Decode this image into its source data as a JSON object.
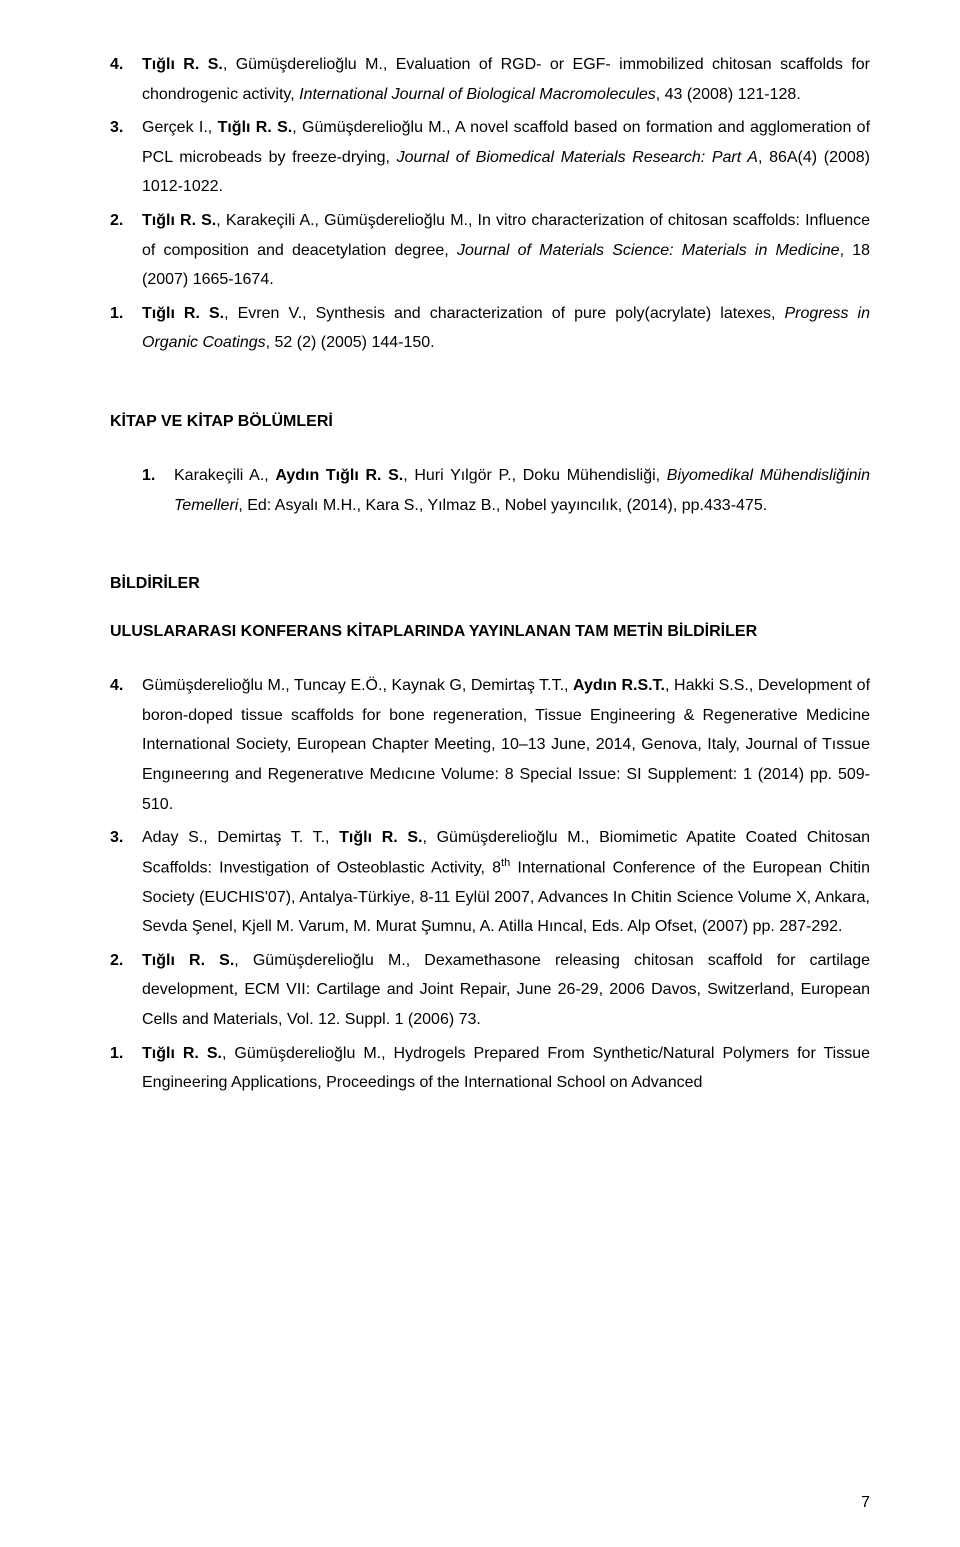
{
  "refs_top": [
    {
      "num": "4.",
      "html": "<span class='bold'>Tığlı R. S.</span>, Gümüşderelioğlu M., Evaluation of RGD- or EGF- immobilized chitosan scaffolds for chondrogenic activity, <span class='italic'>International Journal of Biological Macromolecules</span>, 43 (2008) 121-128."
    },
    {
      "num": "3.",
      "html": "Gerçek I., <span class='bold'>Tığlı R. S.</span>, Gümüşderelioğlu M., A novel scaffold based on formation and agglomeration of PCL microbeads by freeze-drying, <span class='italic'>Journal of Biomedical Materials Research: Part A</span>, 86A(4) (2008) 1012-1022."
    },
    {
      "num": "2.",
      "html": "<span class='bold'>Tığlı R. S.</span>, Karakeçili A., Gümüşderelioğlu M., In vitro characterization of chitosan scaffolds: Influence of composition and deacetylation degree, <span class='italic'>Journal of Materials Science: Materials in Medicine</span>, 18 (2007) 1665-1674."
    },
    {
      "num": "1.",
      "html": "<span class='bold'>Tığlı R. S.</span>, Evren V., Synthesis and characterization of pure poly(acrylate) latexes, <span class='italic'>Progress in Organic Coatings</span>, 52 (2) (2005) 144-150."
    }
  ],
  "heading_books": "KİTAP VE KİTAP BÖLÜMLERİ",
  "refs_books": [
    {
      "num": "1.",
      "html": "Karakeçili A., <span class='bold'>Aydın Tığlı R. S.</span>, Huri Yılgör P., Doku Mühendisliği, <span class='italic'>Biyomedikal Mühendisliğinin Temelleri</span>, Ed: Asyalı M.H., Kara S., Yılmaz B., Nobel yayıncılık, (2014), pp.433-475."
    }
  ],
  "heading_bildiriler": "BİLDİRİLER",
  "heading_conf": "ULUSLARARASI KONFERANS KİTAPLARINDA YAYINLANAN TAM METİN BİLDİRİLER",
  "refs_conf": [
    {
      "num": "4.",
      "html": "Gümüşderelioğlu M., Tuncay E.Ö., Kaynak G, Demirtaş T.T., <span class='bold'>Aydın R.S.T.</span>,  Hakki S.S., Development of boron-doped tissue scaffolds for bone regeneration, Tissue Engineering & Regenerative Medicine International Society, European Chapter Meeting, 10–13 June, 2014, Genova, Italy, Journal of Tıssue Engıneerıng and Regeneratıve Medıcıne  Volume: 8   Special Issue: SI   Supplement: 1 (2014) pp. 509-510."
    },
    {
      "num": "3.",
      "html": "Aday S., Demirtaş T. T., <span class='bold'>Tığlı R. S.</span>, Gümüşderelioğlu M., Biomimetic Apatite Coated Chitosan Scaffolds: Investigation of Osteoblastic Activity, 8<span class='sup'>th</span> International Conference of the European Chitin Society (EUCHIS'07), Antalya-Türkiye, 8-11 Eylül 2007, Advances In Chitin Science Volume X, Ankara, Sevda Şenel, Kjell M. Varum, M. Murat Şumnu, A. Atilla Hıncal, Eds. Alp Ofset, (2007) pp. 287-292."
    },
    {
      "num": "2.",
      "html": "<span class='bold'>Tığlı R. S.</span>, Gümüşderelioğlu M., Dexamethasone releasing chitosan scaffold for cartilage development, ECM VII: Cartilage and Joint Repair, June 26-29, 2006 Davos, Switzerland, European Cells and Materials, Vol. 12. Suppl. 1 (2006) 73."
    },
    {
      "num": "1.",
      "html": "<span class='bold'>Tığlı R. S.</span>, Gümüşderelioğlu M., Hydrogels Prepared From Synthetic/Natural Polymers for Tissue Engineering Applications, Proceedings of the International School on Advanced"
    }
  ],
  "page_number": "7"
}
